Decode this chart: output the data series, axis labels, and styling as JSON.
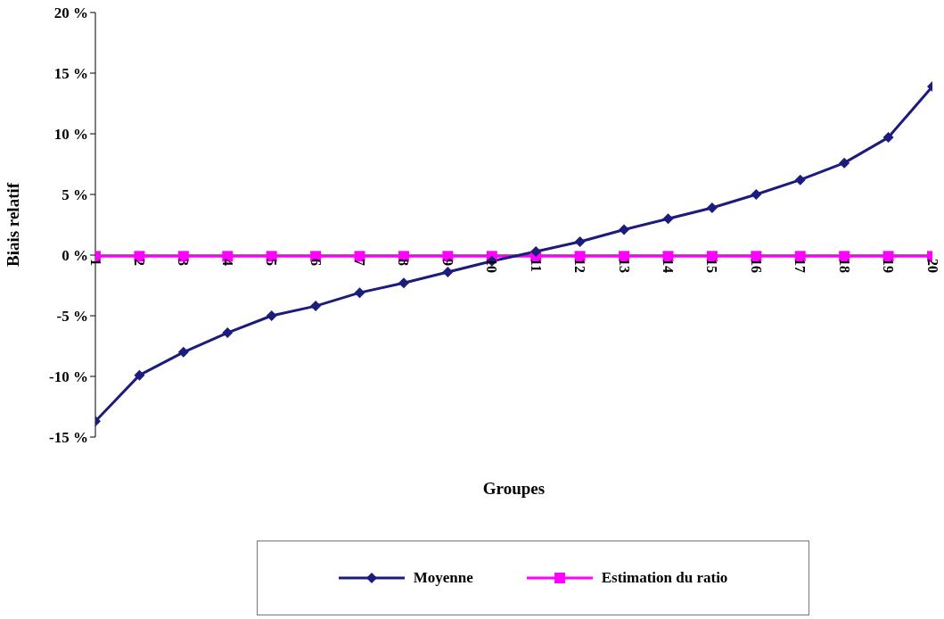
{
  "chart_data": {
    "type": "line",
    "xlabel": "Groupes",
    "ylabel": "Biais relatif",
    "categories": [
      "1",
      "2",
      "3",
      "4",
      "5",
      "6",
      "7",
      "8",
      "9",
      "10",
      "11",
      "12",
      "13",
      "14",
      "15",
      "16",
      "17",
      "18",
      "19",
      "20"
    ],
    "series": [
      {
        "name": "Moyenne",
        "color": "#1c1c7c",
        "marker": "diamond",
        "values": [
          -13.7,
          -9.9,
          -8.0,
          -6.4,
          -5.0,
          -4.2,
          -3.1,
          -2.3,
          -1.4,
          -0.5,
          0.3,
          1.1,
          2.1,
          3.0,
          3.9,
          5.0,
          6.2,
          7.6,
          9.7,
          13.9
        ]
      },
      {
        "name": "Estimation du ratio",
        "color": "#ff00ff",
        "marker": "square",
        "values": [
          -0.1,
          -0.1,
          -0.1,
          -0.1,
          -0.1,
          -0.1,
          -0.1,
          -0.1,
          -0.1,
          -0.1,
          -0.1,
          -0.1,
          -0.1,
          -0.1,
          -0.1,
          -0.1,
          -0.1,
          -0.1,
          -0.1,
          -0.1
        ]
      }
    ],
    "ylim": [
      -15,
      20
    ],
    "yticks": [
      {
        "value": -15,
        "label": "-15 %"
      },
      {
        "value": -10,
        "label": "-10 %"
      },
      {
        "value": -5,
        "label": "-5 %"
      },
      {
        "value": 0,
        "label": "0 %"
      },
      {
        "value": 5,
        "label": "5 %"
      },
      {
        "value": 10,
        "label": "10 %"
      },
      {
        "value": 15,
        "label": "15 %"
      },
      {
        "value": 20,
        "label": "20 %"
      }
    ],
    "grid": false,
    "legend": "bottom",
    "line_style": "solid"
  }
}
